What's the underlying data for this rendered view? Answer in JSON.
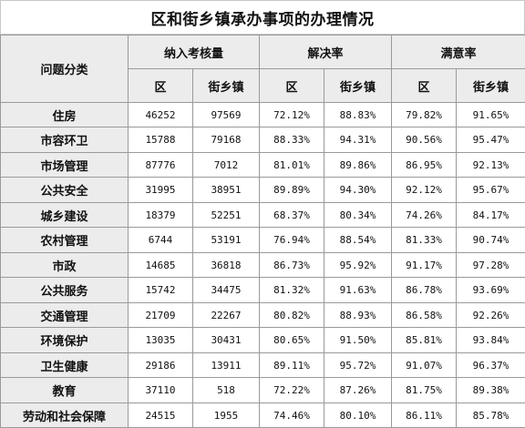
{
  "title": "区和街乡镇承办事项的办理情况",
  "headers": {
    "category": "问题分类",
    "groups": [
      "纳入考核量",
      "解决率",
      "满意率"
    ],
    "sub": [
      "区",
      "街乡镇"
    ]
  },
  "rows": [
    {
      "category": "住房",
      "values": [
        "46252",
        "97569",
        "72.12%",
        "88.83%",
        "79.82%",
        "91.65%"
      ]
    },
    {
      "category": "市容环卫",
      "values": [
        "15788",
        "79168",
        "88.33%",
        "94.31%",
        "90.56%",
        "95.47%"
      ]
    },
    {
      "category": "市场管理",
      "values": [
        "87776",
        "7012",
        "81.01%",
        "89.86%",
        "86.95%",
        "92.13%"
      ]
    },
    {
      "category": "公共安全",
      "values": [
        "31995",
        "38951",
        "89.89%",
        "94.30%",
        "92.12%",
        "95.67%"
      ]
    },
    {
      "category": "城乡建设",
      "values": [
        "18379",
        "52251",
        "68.37%",
        "80.34%",
        "74.26%",
        "84.17%"
      ]
    },
    {
      "category": "农村管理",
      "values": [
        "6744",
        "53191",
        "76.94%",
        "88.54%",
        "81.33%",
        "90.74%"
      ]
    },
    {
      "category": "市政",
      "values": [
        "14685",
        "36818",
        "86.73%",
        "95.92%",
        "91.17%",
        "97.28%"
      ]
    },
    {
      "category": "公共服务",
      "values": [
        "15742",
        "34475",
        "81.32%",
        "91.63%",
        "86.78%",
        "93.69%"
      ]
    },
    {
      "category": "交通管理",
      "values": [
        "21709",
        "22267",
        "80.82%",
        "88.93%",
        "86.58%",
        "92.26%"
      ]
    },
    {
      "category": "环境保护",
      "values": [
        "13035",
        "30431",
        "80.65%",
        "91.50%",
        "85.81%",
        "93.84%"
      ]
    },
    {
      "category": "卫生健康",
      "values": [
        "29186",
        "13911",
        "89.11%",
        "95.72%",
        "91.07%",
        "96.37%"
      ]
    },
    {
      "category": "教育",
      "values": [
        "37110",
        "518",
        "72.22%",
        "87.26%",
        "81.75%",
        "89.38%"
      ]
    },
    {
      "category": "劳动和社会保障",
      "values": [
        "24515",
        "1955",
        "74.46%",
        "80.10%",
        "86.11%",
        "85.78%"
      ]
    }
  ]
}
